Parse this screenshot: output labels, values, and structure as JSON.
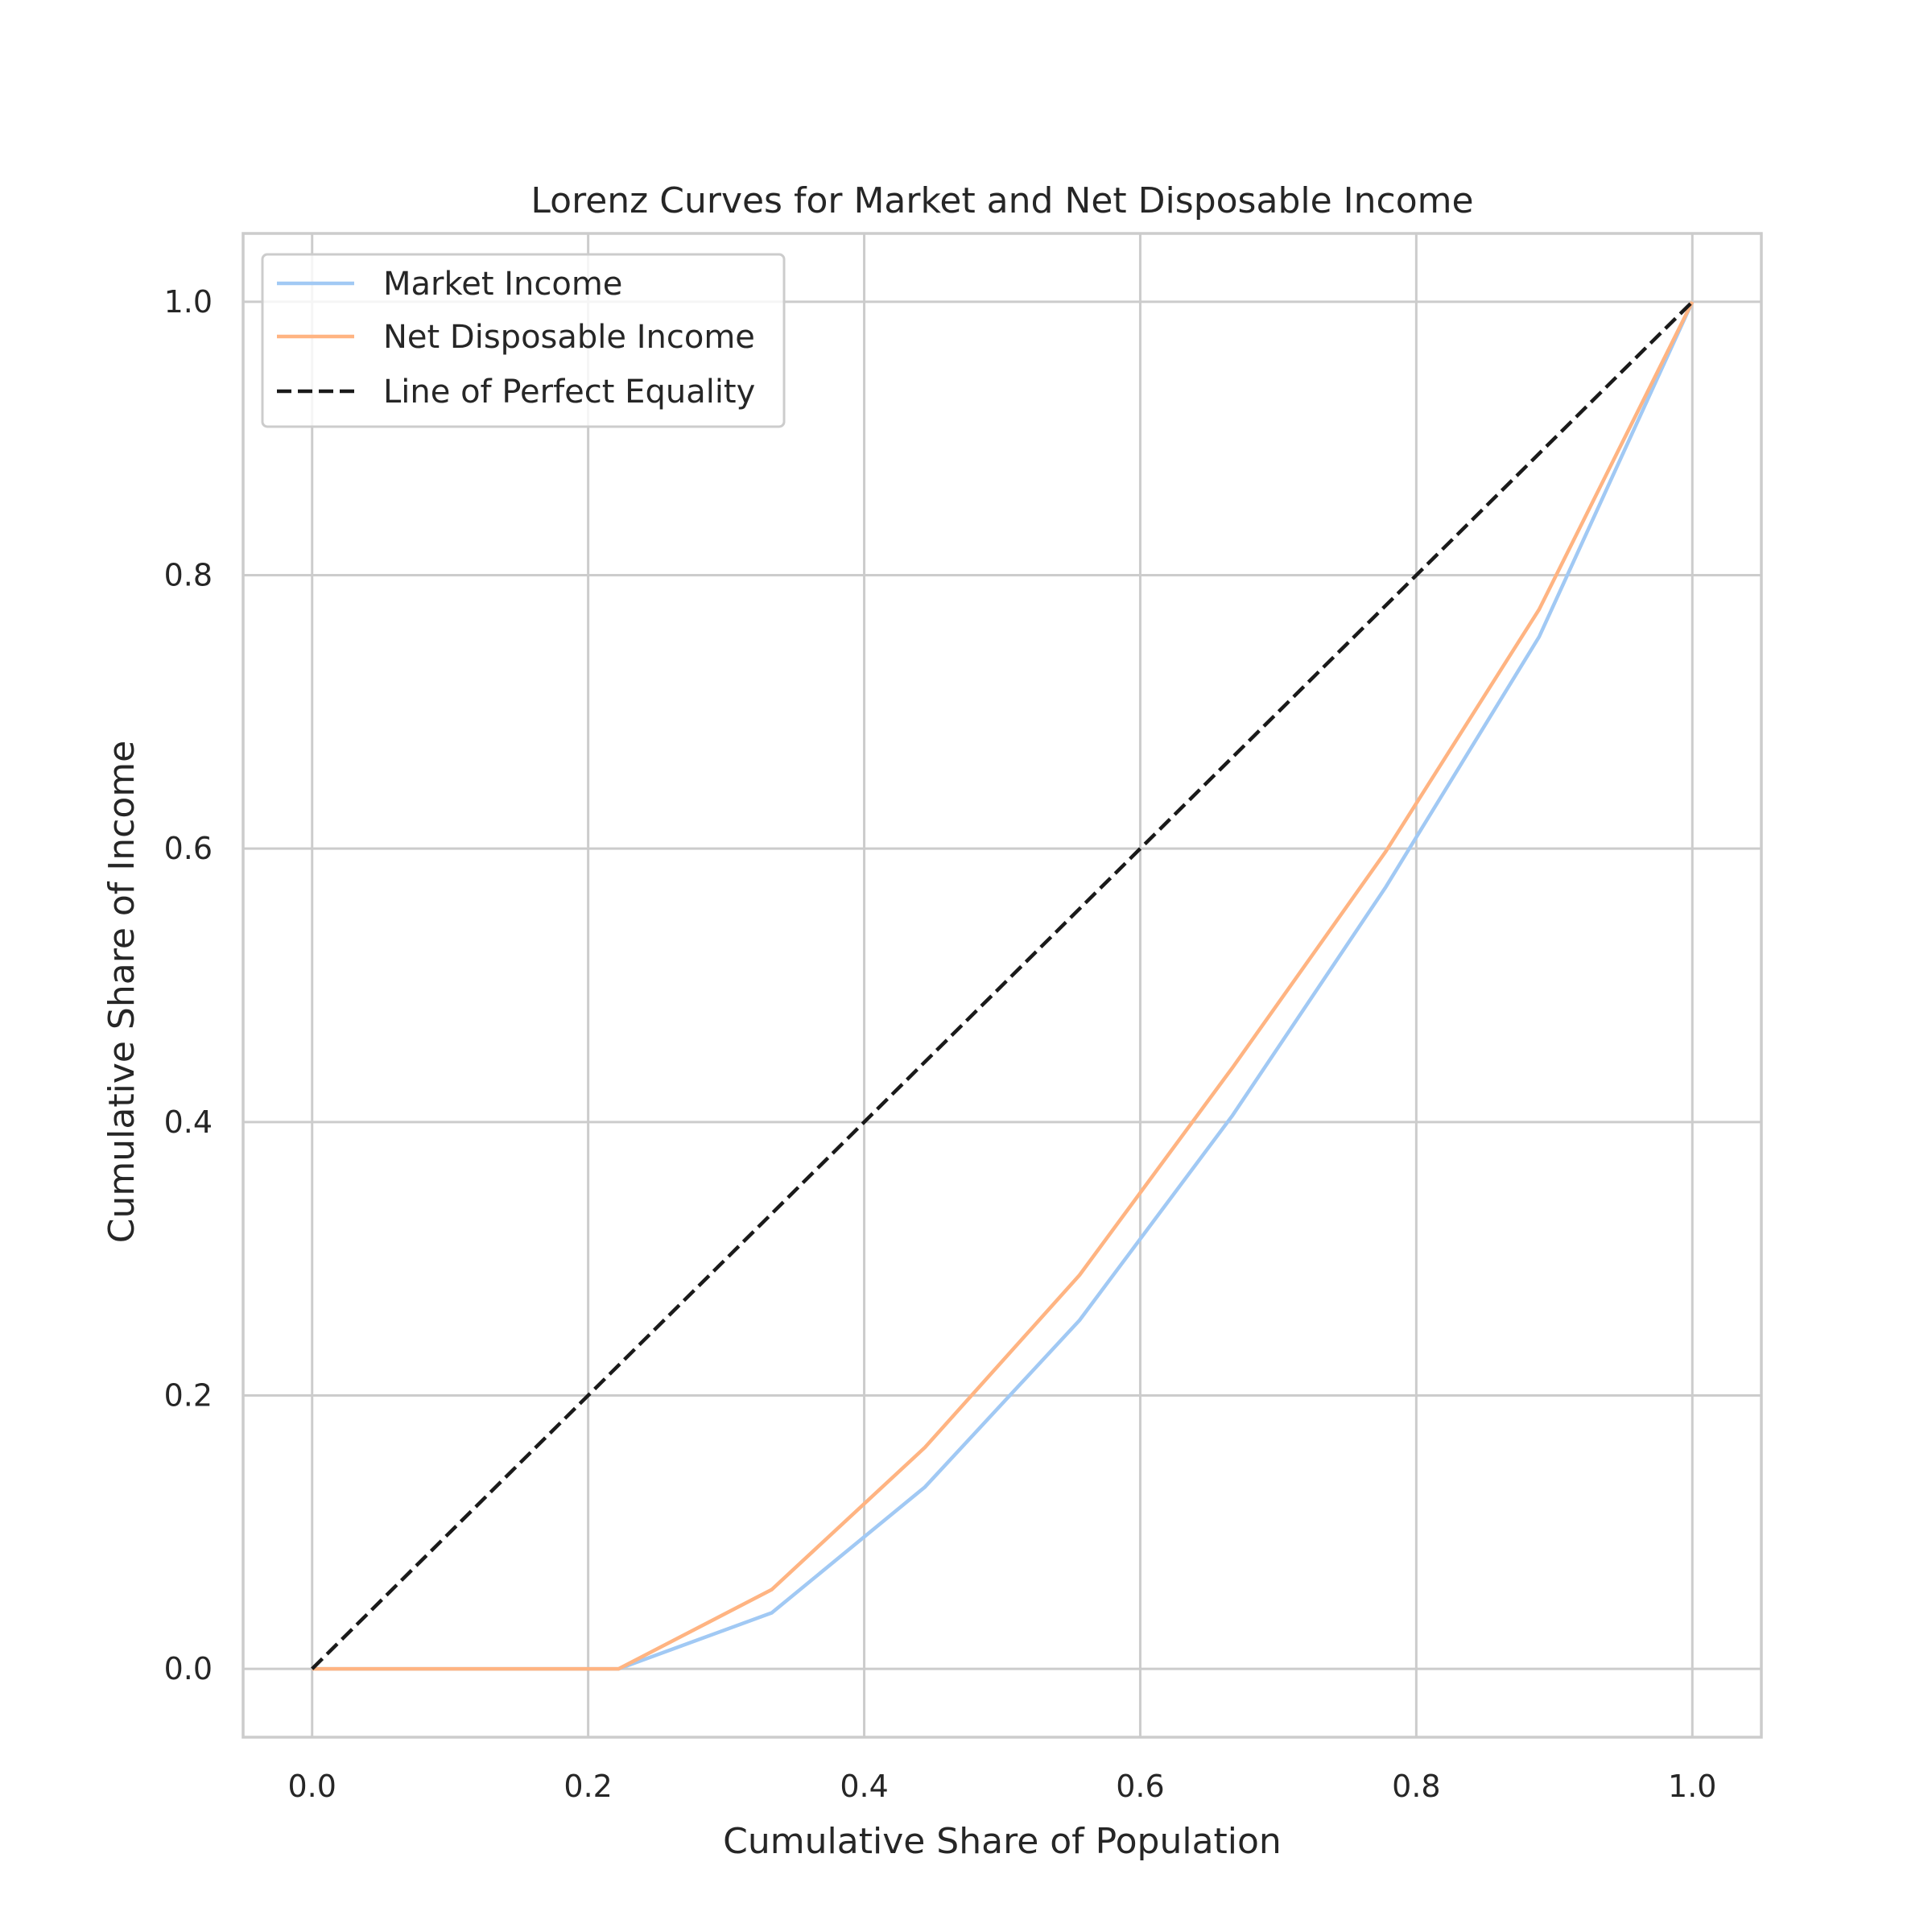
{
  "chart_data": {
    "type": "line",
    "title": "Lorenz Curves for Market and Net Disposable Income",
    "xlabel": "Cumulative Share of Population",
    "ylabel": "Cumulative Share of Income",
    "xlim": [
      -0.05,
      1.05
    ],
    "ylim": [
      -0.05,
      1.05
    ],
    "xticks": [
      0.0,
      0.2,
      0.4,
      0.6,
      0.8,
      1.0
    ],
    "yticks": [
      0.0,
      0.2,
      0.4,
      0.6,
      0.8,
      1.0
    ],
    "xtick_labels": [
      "0.0",
      "0.2",
      "0.4",
      "0.6",
      "0.8",
      "1.0"
    ],
    "ytick_labels": [
      "0.0",
      "0.2",
      "0.4",
      "0.6",
      "0.8",
      "1.0"
    ],
    "grid": true,
    "legend_position": "top-left",
    "series": [
      {
        "name": "Market Income",
        "color": "#a1c9f4",
        "dash": "solid",
        "x": [
          0.0,
          0.111,
          0.222,
          0.333,
          0.444,
          0.556,
          0.667,
          0.778,
          0.889,
          1.0
        ],
        "y": [
          0.0,
          0.0,
          0.0,
          0.041,
          0.133,
          0.255,
          0.405,
          0.572,
          0.755,
          1.0
        ]
      },
      {
        "name": "Net Disposable Income",
        "color": "#ffb482",
        "dash": "solid",
        "x": [
          0.0,
          0.111,
          0.222,
          0.333,
          0.444,
          0.556,
          0.667,
          0.778,
          0.889,
          1.0
        ],
        "y": [
          0.0,
          0.0,
          0.0,
          0.058,
          0.162,
          0.288,
          0.44,
          0.598,
          0.775,
          1.0
        ]
      },
      {
        "name": "Line of Perfect Equality",
        "color": "#1a1a1a",
        "dash": "dashed",
        "x": [
          0.0,
          1.0
        ],
        "y": [
          0.0,
          1.0
        ]
      }
    ]
  }
}
